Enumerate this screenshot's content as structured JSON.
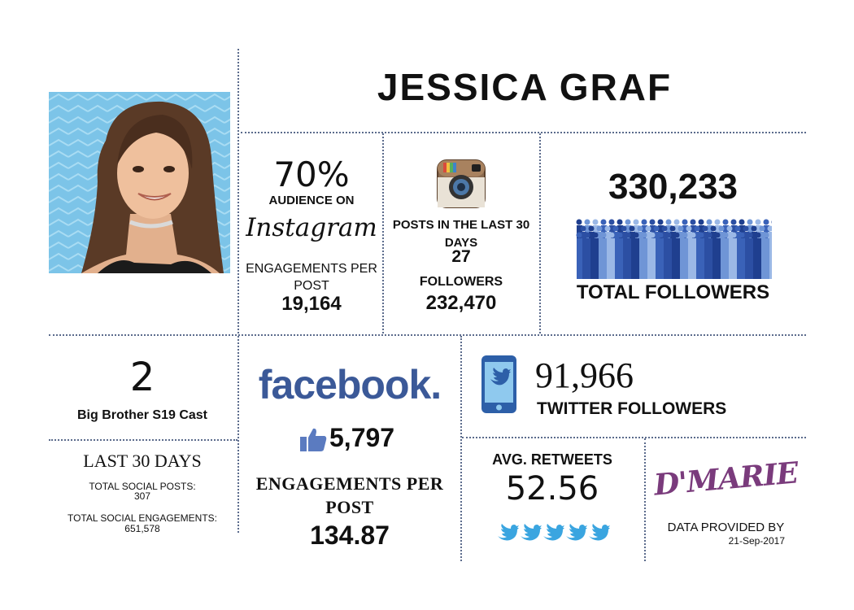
{
  "title": "JESSICA GRAF",
  "instagram": {
    "audience_pct": "70%",
    "audience_label": "AUDIENCE ON",
    "wordmark": "Instagram",
    "engagements_label": "ENGAGEMENTS PER POST",
    "engagements_value": "19,164",
    "posts_label": "POSTS IN THE LAST 30 DAYS",
    "posts_value": "27",
    "followers_label": "FOLLOWERS",
    "followers_value": "232,470"
  },
  "total": {
    "value": "330,233",
    "label": "TOTAL FOLLOWERS"
  },
  "cast": {
    "number": "2",
    "label": "Big Brother S19 Cast"
  },
  "last30": {
    "title": "LAST 30 DAYS",
    "posts_label": "TOTAL SOCIAL POSTS:",
    "posts_value": "307",
    "engagements_label": "TOTAL SOCIAL ENGAGEMENTS:",
    "engagements_value": "651,578"
  },
  "facebook": {
    "wordmark": "facebook.",
    "likes": "5,797",
    "engagements_label": "ENGAGEMENTS PER POST",
    "engagements_value": "134.87"
  },
  "twitter": {
    "followers_value": "91,966",
    "followers_label": "TWITTER FOLLOWERS",
    "retweets_label": "AVG. RETWEETS",
    "retweets_value": "52.56"
  },
  "provider": {
    "logo": "D'MARIE",
    "label": "DATA PROVIDED BY",
    "date": "21-Sep-2017"
  },
  "colors": {
    "divider": "#5b6b8c",
    "facebook_blue": "#3b5998",
    "twitter_blue": "#3aa5e0",
    "dmarie_purple": "#7a3b7c",
    "crowd_blue": "#2f4f9f"
  }
}
